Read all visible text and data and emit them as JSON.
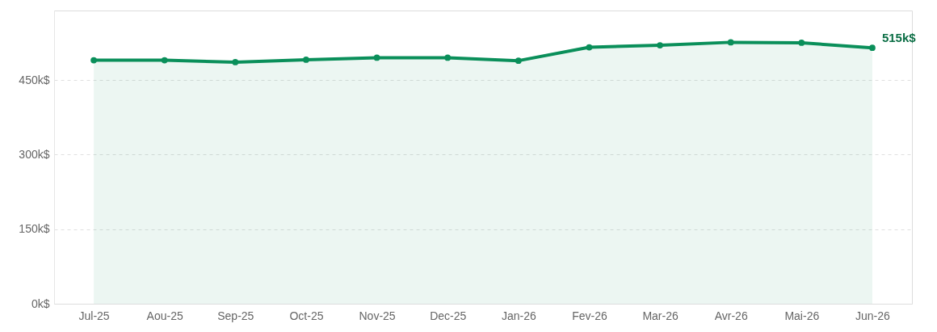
{
  "chart_data": {
    "type": "area",
    "categories": [
      "Jul-25",
      "Aou-25",
      "Sep-25",
      "Oct-25",
      "Nov-25",
      "Dec-25",
      "Jan-26",
      "Fev-26",
      "Mar-26",
      "Avr-26",
      "Mai-26",
      "Jun-26"
    ],
    "series": [
      {
        "color": "#0a8f5a",
        "values": [
          490,
          490,
          486,
          491,
          495,
          495,
          489,
          516,
          520,
          526,
          525,
          515
        ]
      }
    ],
    "ylim": [
      0,
      590
    ],
    "yticks": [
      {
        "value": 0,
        "label": "0k$"
      },
      {
        "value": 150,
        "label": "150k$"
      },
      {
        "value": 300,
        "label": "300k$"
      },
      {
        "value": 450,
        "label": "450k$"
      }
    ],
    "grid": "y",
    "marker": "circle",
    "line_style": "solid",
    "annotations": [
      {
        "text": "515k$",
        "x": "Jun-26",
        "y": 515
      }
    ]
  }
}
